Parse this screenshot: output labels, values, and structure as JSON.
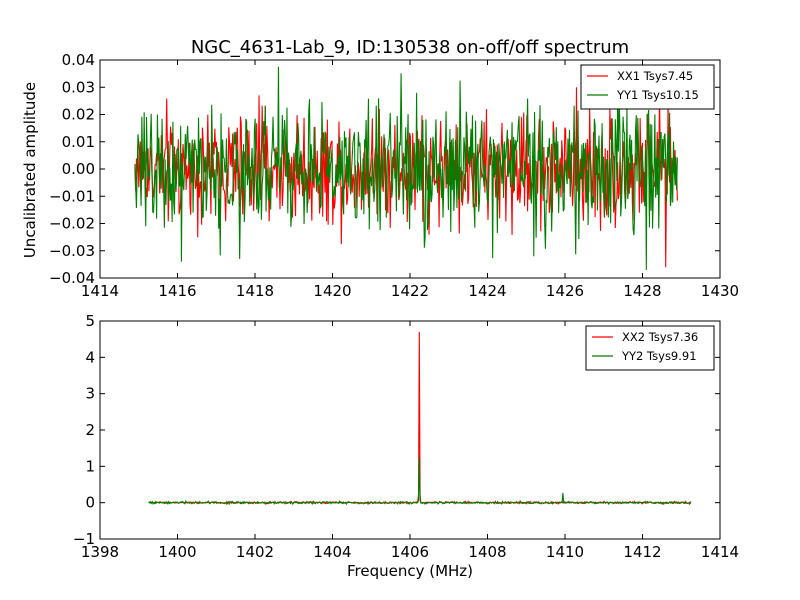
{
  "figure": {
    "title": "NGC_4631-Lab_9, ID:130538 on-off/off spectrum"
  },
  "colors": {
    "XX": "#ff0000",
    "YY": "#008000"
  },
  "chart_data": [
    {
      "type": "line",
      "panel": "top",
      "title": "NGC_4631-Lab_9, ID:130538 on-off/off spectrum",
      "xlabel": "",
      "ylabel": "Uncalibrated amplitude",
      "xlim": [
        1414,
        1430
      ],
      "ylim": [
        -0.04,
        0.04
      ],
      "xticks": [
        "1414",
        "1416",
        "1418",
        "1420",
        "1422",
        "1424",
        "1426",
        "1428",
        "1430"
      ],
      "yticks": [
        "0.04",
        "0.03",
        "0.02",
        "0.01",
        "0.00",
        "−0.01",
        "−0.02",
        "−0.03",
        "−0.04"
      ],
      "legend_placement": "top-right",
      "series": [
        {
          "name": "XX1 Tsys7.45",
          "color": "#ff0000",
          "x_range": [
            1414.9,
            1428.9
          ],
          "points": 700,
          "noise_amplitude": 0.01,
          "features": [
            [
              1428.6,
              -0.036
            ],
            [
              1418.1,
              0.027
            ],
            [
              1426.3,
              0.03
            ],
            [
              1421.2,
              0.022
            ]
          ]
        },
        {
          "name": "YY1 Tsys10.15",
          "color": "#008000",
          "x_range": [
            1414.9,
            1428.9
          ],
          "points": 700,
          "noise_amplitude": 0.012,
          "features": [
            [
              1418.6,
              0.0375
            ],
            [
              1416.1,
              -0.034
            ],
            [
              1428.1,
              -0.037
            ],
            [
              1417.6,
              -0.033
            ],
            [
              1425.2,
              -0.032
            ]
          ]
        }
      ]
    },
    {
      "type": "line",
      "panel": "bottom",
      "xlabel": "Frequency (MHz)",
      "ylabel": "",
      "xlim": [
        1398,
        1414
      ],
      "ylim": [
        -1,
        5
      ],
      "xticks": [
        "1398",
        "1400",
        "1402",
        "1404",
        "1406",
        "1408",
        "1410",
        "1412",
        "1414"
      ],
      "yticks": [
        "5",
        "4",
        "3",
        "2",
        "1",
        "0",
        "−1"
      ],
      "legend_placement": "top-right",
      "series": [
        {
          "name": "XX2 Tsys7.36",
          "color": "#ff0000",
          "x_range": [
            1399.25,
            1413.25
          ],
          "points": 700,
          "noise_amplitude": 0.015,
          "features": [
            [
              1406.25,
              4.7
            ]
          ]
        },
        {
          "name": "YY2 Tsys9.91",
          "color": "#008000",
          "x_range": [
            1399.25,
            1413.25
          ],
          "points": 700,
          "noise_amplitude": 0.015,
          "features": [
            [
              1406.25,
              1.25
            ],
            [
              1409.95,
              0.27
            ]
          ]
        }
      ]
    }
  ]
}
